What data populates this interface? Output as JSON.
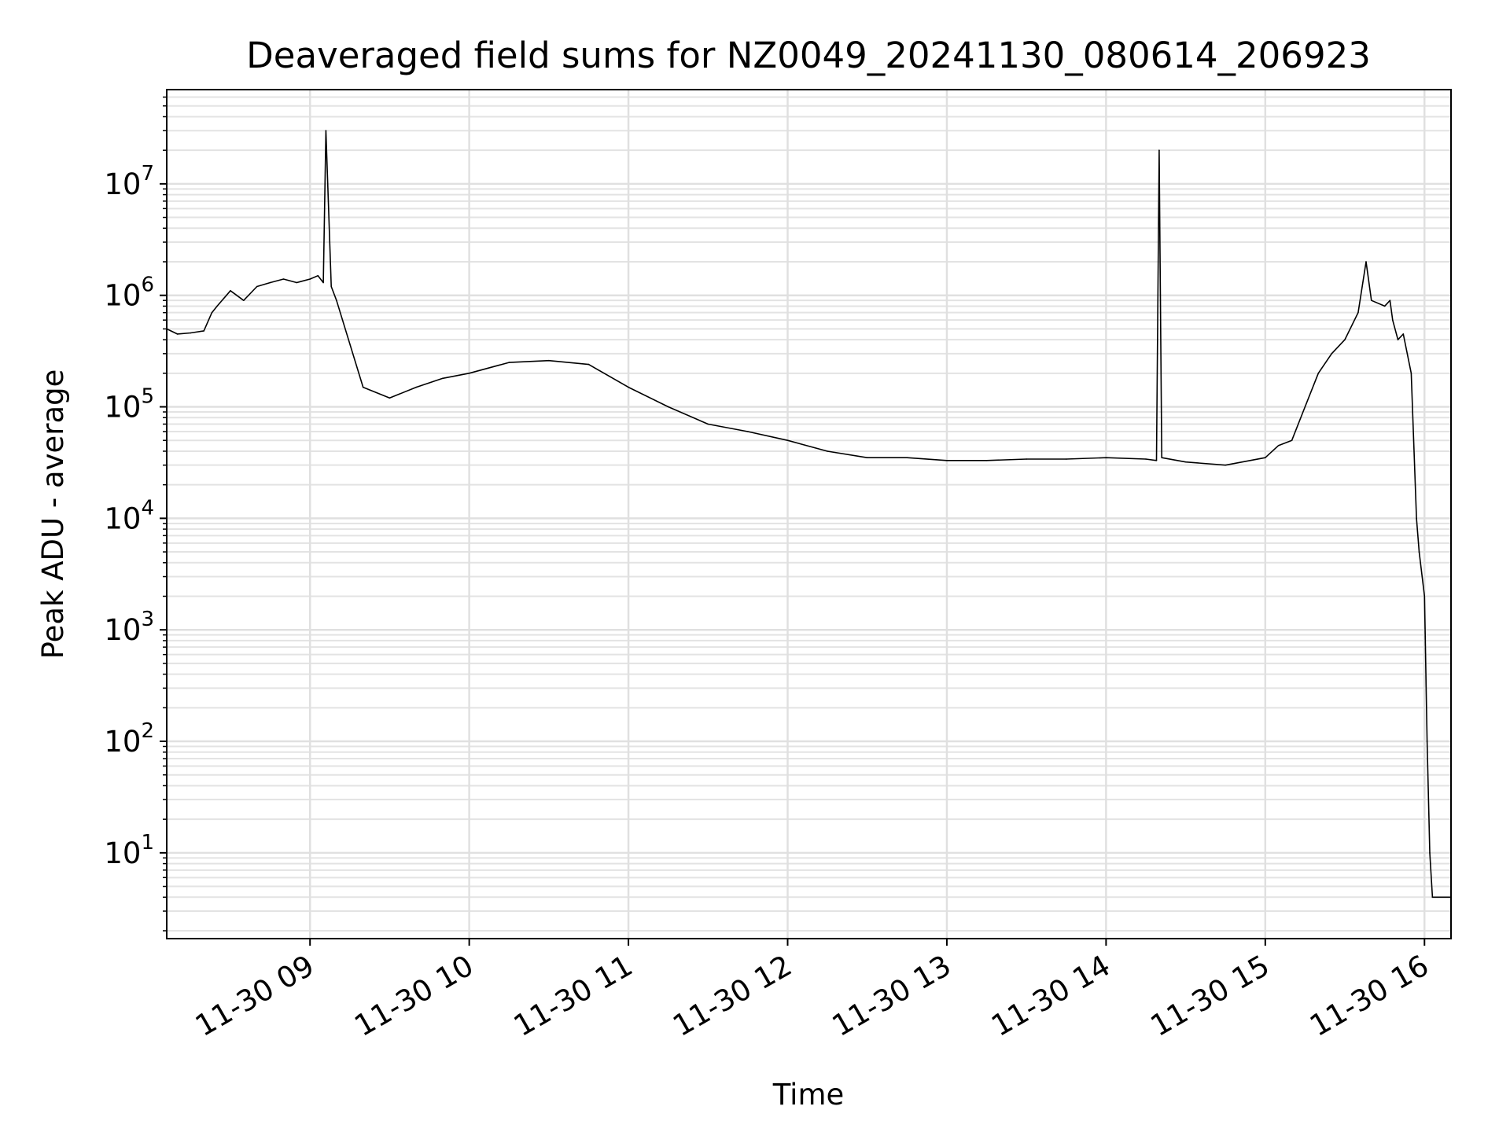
{
  "chart_data": {
    "type": "line",
    "title": "Deaveraged field sums for NZ0049_20241130_080614_206923",
    "xlabel": "Time",
    "ylabel": "Peak ADU - average",
    "yscale": "log",
    "ylim": [
      1.7,
      70000000
    ],
    "xlim": [
      "2024-11-30 08:06",
      "2024-11-30 16:10"
    ],
    "grid": true,
    "x_ticks": [
      {
        "time": "2024-11-30 09:00",
        "label": "11-30 09"
      },
      {
        "time": "2024-11-30 10:00",
        "label": "11-30 10"
      },
      {
        "time": "2024-11-30 11:00",
        "label": "11-30 11"
      },
      {
        "time": "2024-11-30 12:00",
        "label": "11-30 12"
      },
      {
        "time": "2024-11-30 13:00",
        "label": "11-30 13"
      },
      {
        "time": "2024-11-30 14:00",
        "label": "11-30 14"
      },
      {
        "time": "2024-11-30 15:00",
        "label": "11-30 15"
      },
      {
        "time": "2024-11-30 16:00",
        "label": "11-30 16"
      }
    ],
    "y_ticks": [
      {
        "value": 10,
        "base": "10",
        "exp": "1"
      },
      {
        "value": 100,
        "base": "10",
        "exp": "2"
      },
      {
        "value": 1000,
        "base": "10",
        "exp": "3"
      },
      {
        "value": 10000,
        "base": "10",
        "exp": "4"
      },
      {
        "value": 100000,
        "base": "10",
        "exp": "5"
      },
      {
        "value": 1000000,
        "base": "10",
        "exp": "6"
      },
      {
        "value": 10000000,
        "base": "10",
        "exp": "7"
      }
    ],
    "series": [
      {
        "color": "#000000",
        "x": [
          "2024-11-30 08:06",
          "2024-11-30 08:10",
          "2024-11-30 08:15",
          "2024-11-30 08:20",
          "2024-11-30 08:23",
          "2024-11-30 08:25",
          "2024-11-30 08:30",
          "2024-11-30 08:35",
          "2024-11-30 08:40",
          "2024-11-30 08:45",
          "2024-11-30 08:50",
          "2024-11-30 08:55",
          "2024-11-30 09:00",
          "2024-11-30 09:03",
          "2024-11-30 09:05",
          "2024-11-30 09:06",
          "2024-11-30 09:08",
          "2024-11-30 09:10",
          "2024-11-30 09:20",
          "2024-11-30 09:30",
          "2024-11-30 09:40",
          "2024-11-30 09:50",
          "2024-11-30 10:00",
          "2024-11-30 10:15",
          "2024-11-30 10:30",
          "2024-11-30 10:45",
          "2024-11-30 11:00",
          "2024-11-30 11:15",
          "2024-11-30 11:30",
          "2024-11-30 11:45",
          "2024-11-30 12:00",
          "2024-11-30 12:15",
          "2024-11-30 12:30",
          "2024-11-30 12:45",
          "2024-11-30 13:00",
          "2024-11-30 13:15",
          "2024-11-30 13:30",
          "2024-11-30 13:45",
          "2024-11-30 14:00",
          "2024-11-30 14:15",
          "2024-11-30 14:19",
          "2024-11-30 14:20",
          "2024-11-30 14:21",
          "2024-11-30 14:30",
          "2024-11-30 14:45",
          "2024-11-30 15:00",
          "2024-11-30 15:05",
          "2024-11-30 15:10",
          "2024-11-30 15:15",
          "2024-11-30 15:20",
          "2024-11-30 15:25",
          "2024-11-30 15:30",
          "2024-11-30 15:35",
          "2024-11-30 15:38",
          "2024-11-30 15:40",
          "2024-11-30 15:45",
          "2024-11-30 15:47",
          "2024-11-30 15:48",
          "2024-11-30 15:50",
          "2024-11-30 15:52",
          "2024-11-30 15:55",
          "2024-11-30 15:57",
          "2024-11-30 15:58",
          "2024-11-30 16:00",
          "2024-11-30 16:01",
          "2024-11-30 16:02",
          "2024-11-30 16:03",
          "2024-11-30 16:05",
          "2024-11-30 16:10"
        ],
        "y": [
          500000,
          450000,
          460000,
          480000,
          700000,
          800000,
          1100000,
          900000,
          1200000,
          1300000,
          1400000,
          1300000,
          1400000,
          1500000,
          1300000,
          30000000,
          1200000,
          900000,
          150000,
          120000,
          150000,
          180000,
          200000,
          250000,
          260000,
          240000,
          150000,
          100000,
          70000,
          60000,
          50000,
          40000,
          35000,
          35000,
          33000,
          33000,
          34000,
          34000,
          35000,
          34000,
          33000,
          20000000,
          35000,
          32000,
          30000,
          35000,
          45000,
          50000,
          100000,
          200000,
          300000,
          400000,
          700000,
          2000000,
          900000,
          800000,
          900000,
          600000,
          400000,
          450000,
          200000,
          10000,
          5000,
          2000,
          100,
          10,
          4,
          4,
          4
        ]
      }
    ],
    "annotations": [
      {
        "x": "2024-11-30 09:06",
        "y": 30000000,
        "text": ""
      },
      {
        "x": "2024-11-30 14:20",
        "y": 20000000,
        "text": ""
      }
    ]
  }
}
